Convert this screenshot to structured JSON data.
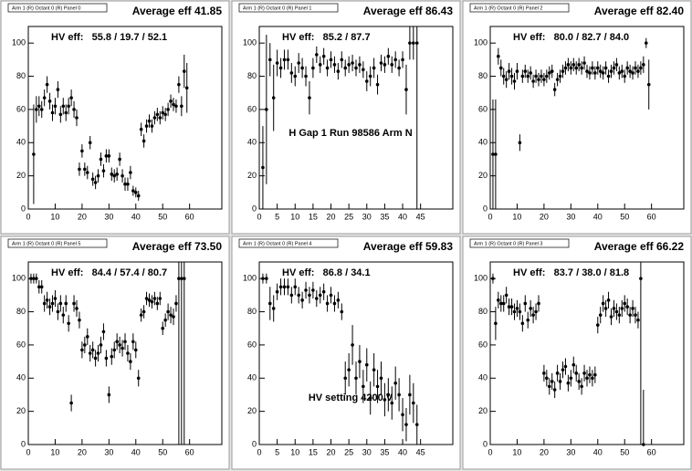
{
  "chart_data": [
    {
      "type": "scatter",
      "title": "Arm 1 (R) Octant 0 (R) Panel 0",
      "average": "Average eff 41.85",
      "stats": "HV eff:   55.8 / 19.7 / 52.1",
      "x": [
        2,
        3,
        4,
        5,
        6,
        7,
        8,
        9,
        10,
        11,
        12,
        13,
        14,
        15,
        16,
        17,
        18,
        19,
        20,
        21,
        22,
        23,
        24,
        25,
        26,
        27,
        28,
        29,
        30,
        31,
        32,
        33,
        34,
        35,
        36,
        37,
        38,
        39,
        40,
        41,
        42,
        43,
        44,
        45,
        46,
        47,
        48,
        49,
        50,
        51,
        52,
        53,
        54,
        55,
        56,
        57,
        58,
        59
      ],
      "values": [
        33,
        60,
        62,
        60,
        67,
        75,
        65,
        58,
        62,
        72,
        57,
        62,
        58,
        62,
        67,
        60,
        55,
        24,
        35,
        24,
        22,
        40,
        18,
        16,
        20,
        30,
        23,
        32,
        32,
        21,
        20,
        21,
        30,
        20,
        15,
        15,
        22,
        11,
        10,
        8,
        48,
        41,
        50,
        53,
        50,
        55,
        57,
        55,
        58,
        57,
        60,
        65,
        63,
        62,
        75,
        62,
        83,
        73
      ],
      "errors": [
        30,
        8,
        6,
        5,
        5,
        5,
        5,
        5,
        5,
        5,
        5,
        5,
        5,
        5,
        5,
        5,
        5,
        4,
        4,
        4,
        4,
        4,
        4,
        4,
        4,
        4,
        4,
        4,
        4,
        4,
        4,
        4,
        4,
        4,
        4,
        4,
        4,
        3,
        3,
        3,
        4,
        4,
        4,
        4,
        4,
        4,
        4,
        4,
        4,
        4,
        4,
        4,
        4,
        4,
        5,
        6,
        10,
        15
      ],
      "xlim": [
        0,
        72
      ],
      "ylim": [
        0,
        110
      ],
      "xticks": [
        0,
        10,
        20,
        30,
        40,
        50,
        60
      ],
      "yticks": [
        0,
        20,
        40,
        60,
        80,
        100
      ],
      "color": "#000000"
    },
    {
      "type": "scatter",
      "title": "Arm 1 (R) Octant 0 (R) Panel 1",
      "average": "Average eff 86.43",
      "stats": "HV eff:   85.2 / 87.7",
      "annotation": "H Gap 1 Run 98586 Arm N",
      "x": [
        1,
        2,
        3,
        4,
        5,
        6,
        7,
        8,
        9,
        10,
        11,
        12,
        13,
        14,
        15,
        16,
        17,
        18,
        19,
        20,
        21,
        22,
        23,
        24,
        25,
        26,
        27,
        28,
        29,
        30,
        31,
        32,
        33,
        34,
        35,
        36,
        37,
        38,
        39,
        40,
        41,
        42,
        43,
        44
      ],
      "values": [
        25,
        60,
        90,
        67,
        88,
        85,
        90,
        90,
        82,
        80,
        88,
        85,
        80,
        67,
        85,
        93,
        87,
        92,
        85,
        90,
        87,
        83,
        90,
        85,
        87,
        88,
        85,
        87,
        84,
        77,
        80,
        85,
        75,
        88,
        87,
        92,
        87,
        90,
        85,
        90,
        72,
        100,
        100,
        100
      ],
      "errors": [
        25,
        45,
        10,
        20,
        8,
        6,
        6,
        6,
        6,
        6,
        6,
        6,
        6,
        10,
        6,
        5,
        5,
        5,
        5,
        5,
        5,
        5,
        5,
        5,
        5,
        5,
        5,
        5,
        5,
        6,
        6,
        6,
        6,
        5,
        5,
        5,
        5,
        5,
        5,
        5,
        15,
        10,
        10,
        100
      ],
      "xlim": [
        0,
        54
      ],
      "ylim": [
        0,
        110
      ],
      "xticks": [
        0,
        5,
        10,
        15,
        20,
        25,
        30,
        35,
        40,
        45
      ],
      "yticks": [
        0,
        20,
        40,
        60,
        80,
        100
      ],
      "color": "#000000"
    },
    {
      "type": "scatter",
      "title": "Arm 1 (R) Octant 0 (R) Panel 2",
      "average": "Average eff 82.40",
      "stats": "HV eff:   80.0 / 82.7 / 84.0",
      "x": [
        1,
        2,
        3,
        4,
        5,
        6,
        7,
        8,
        9,
        10,
        11,
        12,
        13,
        14,
        15,
        16,
        17,
        18,
        19,
        20,
        21,
        22,
        23,
        24,
        25,
        26,
        27,
        28,
        29,
        30,
        31,
        32,
        33,
        34,
        35,
        36,
        37,
        38,
        39,
        40,
        41,
        42,
        43,
        44,
        45,
        46,
        47,
        48,
        49,
        50,
        51,
        52,
        53,
        54,
        55,
        56,
        57,
        58,
        59
      ],
      "values": [
        33,
        33,
        92,
        85,
        80,
        78,
        83,
        80,
        77,
        83,
        40,
        80,
        83,
        80,
        82,
        77,
        80,
        78,
        80,
        78,
        80,
        82,
        83,
        72,
        78,
        80,
        83,
        85,
        87,
        85,
        87,
        85,
        87,
        85,
        88,
        83,
        82,
        85,
        82,
        85,
        83,
        82,
        85,
        80,
        83,
        85,
        87,
        82,
        83,
        80,
        85,
        83,
        82,
        85,
        83,
        85,
        87,
        100,
        75
      ],
      "errors": [
        33,
        33,
        5,
        5,
        5,
        5,
        5,
        5,
        5,
        5,
        5,
        4,
        4,
        4,
        4,
        4,
        4,
        4,
        4,
        4,
        4,
        4,
        4,
        4,
        4,
        4,
        4,
        4,
        4,
        4,
        4,
        4,
        4,
        4,
        4,
        4,
        4,
        4,
        4,
        4,
        4,
        4,
        4,
        4,
        4,
        4,
        4,
        4,
        4,
        4,
        4,
        4,
        4,
        4,
        4,
        4,
        5,
        3,
        15
      ],
      "xlim": [
        0,
        72
      ],
      "ylim": [
        0,
        110
      ],
      "xticks": [
        0,
        10,
        20,
        30,
        40,
        50,
        60
      ],
      "yticks": [
        0,
        20,
        40,
        60,
        80,
        100
      ],
      "color": "#000000"
    },
    {
      "type": "scatter",
      "title": "Arm 1 (R) Octant 0 (R) Panel 5",
      "average": "Average eff 73.50",
      "stats": "HV eff:   84.4 / 57.4 / 80.7",
      "x": [
        1,
        2,
        3,
        4,
        5,
        6,
        7,
        8,
        9,
        10,
        11,
        12,
        13,
        14,
        15,
        16,
        17,
        18,
        19,
        20,
        21,
        22,
        23,
        24,
        25,
        26,
        27,
        28,
        29,
        30,
        31,
        32,
        33,
        34,
        35,
        36,
        37,
        38,
        39,
        40,
        41,
        42,
        43,
        44,
        45,
        46,
        47,
        48,
        49,
        50,
        51,
        52,
        53,
        54,
        55,
        56,
        57,
        58
      ],
      "values": [
        100,
        100,
        100,
        95,
        95,
        85,
        87,
        83,
        85,
        88,
        80,
        85,
        78,
        85,
        73,
        25,
        85,
        82,
        75,
        57,
        60,
        65,
        55,
        57,
        52,
        55,
        60,
        68,
        52,
        30,
        53,
        57,
        62,
        60,
        58,
        62,
        55,
        50,
        62,
        57,
        40,
        78,
        80,
        88,
        87,
        86,
        88,
        85,
        88,
        70,
        75,
        80,
        78,
        77,
        85,
        100,
        100,
        100
      ],
      "errors": [
        3,
        3,
        3,
        4,
        4,
        5,
        5,
        5,
        5,
        5,
        5,
        5,
        5,
        5,
        5,
        5,
        5,
        5,
        5,
        5,
        5,
        5,
        5,
        5,
        5,
        5,
        5,
        5,
        5,
        5,
        5,
        5,
        5,
        5,
        5,
        5,
        5,
        5,
        5,
        5,
        5,
        4,
        4,
        4,
        4,
        4,
        4,
        4,
        4,
        4,
        4,
        5,
        5,
        5,
        5,
        100,
        100,
        100
      ],
      "xlim": [
        0,
        72
      ],
      "ylim": [
        0,
        110
      ],
      "xticks": [
        0,
        10,
        20,
        30,
        40,
        50,
        60
      ],
      "yticks": [
        0,
        20,
        40,
        60,
        80,
        100
      ],
      "color": "#000000"
    },
    {
      "type": "scatter",
      "title": "Arm 1 (R) Octant 0 (R) Panel 4",
      "average": "Average eff 59.83",
      "stats": "HV eff:   86.8 / 34.1",
      "annotation": "HV setting 4200 V",
      "x": [
        1,
        2,
        3,
        4,
        5,
        6,
        7,
        8,
        9,
        10,
        11,
        12,
        13,
        14,
        15,
        16,
        17,
        18,
        19,
        20,
        21,
        22,
        23,
        24,
        25,
        26,
        27,
        28,
        29,
        30,
        31,
        32,
        33,
        34,
        35,
        36,
        37,
        38,
        39,
        40,
        41,
        42,
        43,
        44
      ],
      "values": [
        100,
        100,
        85,
        82,
        92,
        95,
        95,
        95,
        90,
        95,
        90,
        87,
        93,
        90,
        93,
        88,
        90,
        92,
        85,
        90,
        85,
        87,
        80,
        40,
        45,
        60,
        40,
        50,
        35,
        48,
        28,
        45,
        35,
        40,
        27,
        30,
        25,
        37,
        30,
        18,
        12,
        30,
        25,
        12
      ],
      "errors": [
        3,
        3,
        10,
        8,
        5,
        5,
        5,
        5,
        5,
        5,
        5,
        5,
        5,
        5,
        5,
        5,
        5,
        5,
        5,
        5,
        5,
        5,
        5,
        10,
        10,
        12,
        10,
        10,
        10,
        10,
        10,
        10,
        10,
        10,
        10,
        10,
        10,
        10,
        10,
        10,
        10,
        12,
        12,
        12
      ],
      "xlim": [
        0,
        54
      ],
      "ylim": [
        0,
        110
      ],
      "xticks": [
        0,
        5,
        10,
        15,
        20,
        25,
        30,
        35,
        40,
        45
      ],
      "yticks": [
        0,
        20,
        40,
        60,
        80,
        100
      ],
      "color": "#000000"
    },
    {
      "type": "scatter",
      "title": "Arm 1 (R) Octant 0 (R) Panel 3",
      "average": "Average eff 66.22",
      "stats": "HV eff:   83.7 / 38.0 / 81.8",
      "x": [
        1,
        2,
        3,
        4,
        5,
        6,
        7,
        8,
        9,
        10,
        11,
        12,
        13,
        14,
        15,
        16,
        17,
        18,
        20,
        21,
        22,
        23,
        24,
        25,
        26,
        27,
        28,
        29,
        30,
        31,
        32,
        33,
        34,
        35,
        36,
        37,
        38,
        39,
        40,
        41,
        42,
        43,
        44,
        45,
        46,
        47,
        48,
        49,
        50,
        51,
        52,
        53,
        54,
        55,
        56,
        57
      ],
      "values": [
        100,
        73,
        87,
        85,
        85,
        90,
        83,
        83,
        80,
        82,
        80,
        73,
        85,
        75,
        82,
        78,
        80,
        85,
        43,
        40,
        35,
        38,
        33,
        43,
        38,
        45,
        47,
        37,
        40,
        48,
        43,
        38,
        35,
        43,
        40,
        42,
        40,
        42,
        72,
        78,
        85,
        82,
        87,
        77,
        82,
        80,
        78,
        82,
        85,
        83,
        78,
        82,
        78,
        75,
        100,
        0
      ],
      "errors": [
        3,
        10,
        5,
        5,
        5,
        5,
        5,
        5,
        5,
        5,
        5,
        5,
        5,
        5,
        5,
        5,
        5,
        5,
        5,
        5,
        5,
        5,
        5,
        5,
        5,
        5,
        5,
        5,
        5,
        5,
        5,
        5,
        5,
        5,
        5,
        5,
        5,
        5,
        5,
        5,
        5,
        5,
        5,
        5,
        5,
        5,
        5,
        5,
        5,
        5,
        5,
        5,
        5,
        5,
        100,
        33
      ],
      "xlim": [
        0,
        72
      ],
      "ylim": [
        0,
        110
      ],
      "xticks": [
        0,
        10,
        20,
        30,
        40,
        50,
        60
      ],
      "yticks": [
        0,
        20,
        40,
        60,
        80,
        100
      ],
      "color": "#000000"
    }
  ]
}
